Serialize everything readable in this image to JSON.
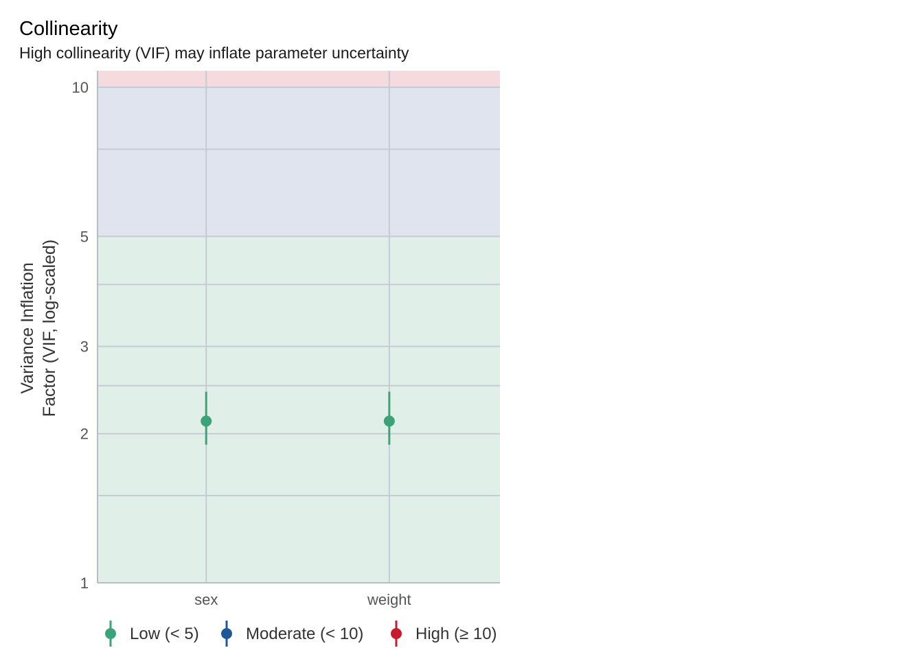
{
  "chart_data": {
    "type": "scatter",
    "title": "Collinearity",
    "subtitle": "High collinearity (VIF) may inflate parameter uncertainty",
    "ylabel_lines": [
      "Variance Inflation",
      "Factor (VIF, log-scaled)"
    ],
    "y_scale": "log",
    "ylim": [
      1,
      10.8
    ],
    "y_ticks": [
      1,
      2,
      3,
      5,
      10
    ],
    "y_minor_gridlines": [
      1.5,
      2.5,
      4,
      7.5
    ],
    "grid": true,
    "categories": [
      "sex",
      "weight"
    ],
    "points": [
      {
        "x": "sex",
        "vif": 2.12,
        "ci_low": 1.9,
        "ci_high": 2.43,
        "level": "Low (< 5)"
      },
      {
        "x": "weight",
        "vif": 2.12,
        "ci_low": 1.9,
        "ci_high": 2.43,
        "level": "Low (< 5)"
      }
    ],
    "bands": [
      {
        "from": 1,
        "to": 5,
        "color": "#e0f0e9"
      },
      {
        "from": 5,
        "to": 10,
        "color": "#dfe4ef"
      },
      {
        "from": 10,
        "to": 10.8,
        "color": "#f5dade"
      }
    ],
    "legend_position": "bottom",
    "legend": [
      {
        "label": "Low (< 5)",
        "color": "#3aa478"
      },
      {
        "label": "Moderate (< 10)",
        "color": "#1f5799"
      },
      {
        "label": "High (≥ 10)",
        "color": "#c71b2c"
      }
    ]
  }
}
